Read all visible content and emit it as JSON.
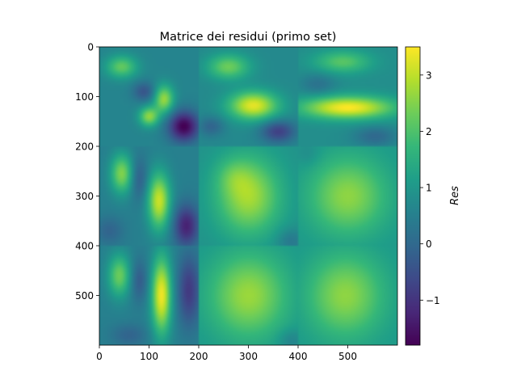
{
  "chart_data": {
    "type": "heatmap",
    "title": "Matrice dei residui (primo set)",
    "xlabel": "",
    "ylabel": "",
    "colorbar_label": "Res",
    "colormap": "viridis",
    "xlim": [
      0,
      600
    ],
    "ylim": [
      600,
      0
    ],
    "x_ticks": [
      0,
      100,
      200,
      300,
      400,
      500
    ],
    "y_ticks": [
      0,
      100,
      200,
      300,
      400,
      500
    ],
    "colorbar_range": [
      -1.8,
      3.5
    ],
    "colorbar_ticks": [
      "−1",
      "0",
      "1",
      "2",
      "3"
    ],
    "colorbar_tick_values": [
      -1,
      0,
      1,
      2,
      3
    ],
    "grid": false,
    "tiles": [
      {
        "row": 0,
        "col": 0,
        "base": 0.6,
        "blobs": [
          {
            "x": 45,
            "y": 40,
            "sx": 22,
            "sy": 16,
            "a": 1.6
          },
          {
            "x": 130,
            "y": 105,
            "sx": 14,
            "sy": 20,
            "a": 2.1
          },
          {
            "x": 100,
            "y": 140,
            "sx": 14,
            "sy": 14,
            "a": 2.0
          },
          {
            "x": 170,
            "y": 160,
            "sx": 22,
            "sy": 22,
            "a": -2.4
          },
          {
            "x": 90,
            "y": 90,
            "sx": 16,
            "sy": 14,
            "a": -1.0
          }
        ]
      },
      {
        "row": 0,
        "col": 1,
        "base": 0.7,
        "blobs": [
          {
            "x": 260,
            "y": 40,
            "sx": 30,
            "sy": 18,
            "a": 1.6
          },
          {
            "x": 310,
            "y": 118,
            "sx": 35,
            "sy": 20,
            "a": 2.6
          },
          {
            "x": 360,
            "y": 170,
            "sx": 25,
            "sy": 16,
            "a": -1.5
          },
          {
            "x": 225,
            "y": 160,
            "sx": 18,
            "sy": 14,
            "a": -0.8
          }
        ]
      },
      {
        "row": 0,
        "col": 2,
        "base": 0.8,
        "blobs": [
          {
            "x": 490,
            "y": 30,
            "sx": 40,
            "sy": 16,
            "a": 1.3
          },
          {
            "x": 500,
            "y": 122,
            "sx": 65,
            "sy": 16,
            "a": 2.7
          },
          {
            "x": 440,
            "y": 75,
            "sx": 25,
            "sy": 16,
            "a": -0.6
          },
          {
            "x": 555,
            "y": 180,
            "sx": 30,
            "sy": 14,
            "a": -0.8
          }
        ]
      },
      {
        "row": 1,
        "col": 0,
        "base": 0.5,
        "blobs": [
          {
            "x": 45,
            "y": 255,
            "sx": 16,
            "sy": 28,
            "a": 2.0
          },
          {
            "x": 120,
            "y": 310,
            "sx": 16,
            "sy": 40,
            "a": 2.6
          },
          {
            "x": 80,
            "y": 265,
            "sx": 12,
            "sy": 30,
            "a": -0.8
          },
          {
            "x": 175,
            "y": 360,
            "sx": 18,
            "sy": 30,
            "a": -1.8
          },
          {
            "x": 20,
            "y": 370,
            "sx": 20,
            "sy": 20,
            "a": -0.6
          }
        ]
      },
      {
        "row": 1,
        "col": 1,
        "base": 0.9,
        "blobs": [
          {
            "x": 300,
            "y": 300,
            "sx": 45,
            "sy": 55,
            "a": 1.9
          },
          {
            "x": 270,
            "y": 260,
            "sx": 25,
            "sy": 25,
            "a": 0.5
          },
          {
            "x": 385,
            "y": 390,
            "sx": 20,
            "sy": 18,
            "a": -0.6
          }
        ]
      },
      {
        "row": 1,
        "col": 2,
        "base": 1.0,
        "blobs": [
          {
            "x": 500,
            "y": 300,
            "sx": 55,
            "sy": 55,
            "a": 1.6
          },
          {
            "x": 420,
            "y": 215,
            "sx": 18,
            "sy": 18,
            "a": -0.3
          }
        ]
      },
      {
        "row": 2,
        "col": 0,
        "base": 0.5,
        "blobs": [
          {
            "x": 40,
            "y": 460,
            "sx": 16,
            "sy": 30,
            "a": 1.8
          },
          {
            "x": 125,
            "y": 500,
            "sx": 14,
            "sy": 55,
            "a": 2.9
          },
          {
            "x": 80,
            "y": 470,
            "sx": 12,
            "sy": 30,
            "a": -0.8
          },
          {
            "x": 180,
            "y": 490,
            "sx": 16,
            "sy": 50,
            "a": -1.4
          },
          {
            "x": 60,
            "y": 580,
            "sx": 25,
            "sy": 16,
            "a": -0.6
          }
        ]
      },
      {
        "row": 2,
        "col": 1,
        "base": 1.0,
        "blobs": [
          {
            "x": 300,
            "y": 500,
            "sx": 55,
            "sy": 60,
            "a": 1.7
          },
          {
            "x": 385,
            "y": 590,
            "sx": 18,
            "sy": 16,
            "a": -0.5
          }
        ]
      },
      {
        "row": 2,
        "col": 2,
        "base": 1.0,
        "blobs": [
          {
            "x": 495,
            "y": 500,
            "sx": 55,
            "sy": 60,
            "a": 1.6
          }
        ]
      }
    ]
  }
}
